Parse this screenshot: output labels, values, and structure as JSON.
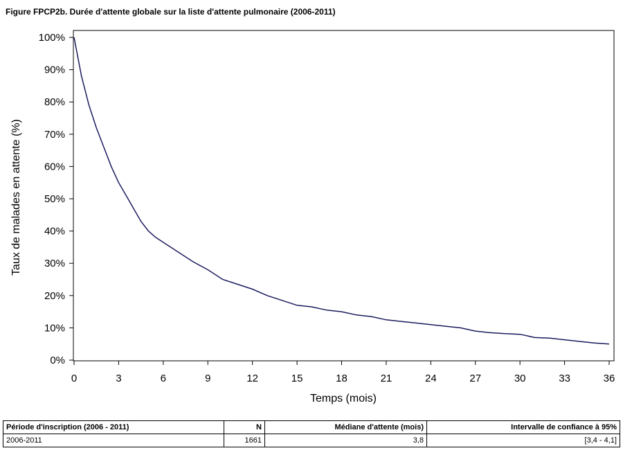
{
  "title": "Figure FPCP2b. Durée d'attente globale sur la liste d'attente pulmonaire (2006-2011)",
  "chart_data": {
    "type": "line",
    "xlabel": "Temps (mois)",
    "ylabel": "Taux de malades en attente (%)",
    "xlim": [
      0,
      36
    ],
    "ylim": [
      0,
      100
    ],
    "x_ticks": [
      "0",
      "3",
      "6",
      "9",
      "12",
      "15",
      "18",
      "21",
      "24",
      "27",
      "30",
      "33",
      "36"
    ],
    "y_ticks": [
      "0%",
      "10%",
      "20%",
      "30%",
      "40%",
      "50%",
      "60%",
      "70%",
      "80%",
      "90%",
      "100%"
    ],
    "grid": false,
    "legend": "none",
    "line_color": "#1a1a5e",
    "series": [
      {
        "x": [
          0,
          0.5,
          1,
          1.5,
          2,
          2.5,
          3,
          3.5,
          4,
          4.5,
          5,
          5.5,
          6,
          7,
          8,
          9,
          10,
          11,
          12,
          13,
          14,
          15,
          16,
          17,
          18,
          19,
          20,
          21,
          22,
          23,
          24,
          25,
          26,
          27,
          28,
          29,
          30,
          31,
          32,
          33,
          34,
          35,
          36
        ],
        "y": [
          100,
          88,
          79,
          72,
          66,
          60,
          55,
          51,
          47,
          43,
          40,
          38,
          36.5,
          33.5,
          30.5,
          28,
          25,
          23.5,
          22,
          20,
          18.5,
          17,
          16.5,
          15.5,
          15,
          14,
          13.5,
          12.5,
          12,
          11.5,
          11,
          10.5,
          10,
          9,
          8.5,
          8.2,
          8,
          7,
          6.8,
          6.3,
          5.8,
          5.3,
          5
        ]
      }
    ]
  },
  "table": {
    "headers": [
      "Période d'inscription (2006 - 2011)",
      "N",
      "Médiane d'attente (mois)",
      "Intervalle de confiance à 95%"
    ],
    "rows": [
      [
        "2006-2011",
        "1661",
        "3,8",
        "[3,4 - 4,1]"
      ]
    ]
  }
}
